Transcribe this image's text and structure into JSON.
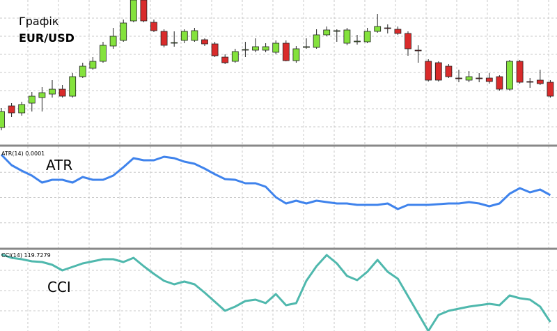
{
  "chart_data": [
    {
      "type": "candlestick",
      "title": "Графік",
      "subtitle": "EUR/USD",
      "up_color": "#84e23c",
      "down_color": "#d92b2b",
      "ylim": [
        2,
        210
      ],
      "open": [
        27,
        58,
        48,
        62,
        70,
        75,
        82,
        72,
        100,
        112,
        122,
        144,
        152,
        180,
        210,
        178,
        165,
        148,
        152,
        152,
        153,
        147,
        128,
        122,
        138,
        138,
        138,
        135,
        148,
        123,
        142,
        142,
        160,
        165,
        148,
        150,
        150,
        165,
        170,
        168,
        162,
        138,
        122,
        120,
        115,
        98,
        95,
        98,
        98,
        100,
        82,
        122,
        93,
        95,
        92
      ],
      "close": [
        50,
        48,
        60,
        72,
        77,
        82,
        72,
        100,
        115,
        122,
        145,
        158,
        177,
        210,
        180,
        166,
        145,
        149,
        165,
        166,
        147,
        130,
        120,
        136,
        139,
        143,
        143,
        148,
        123,
        140,
        143,
        160,
        167,
        166,
        167,
        151,
        165,
        172,
        169,
        162,
        140,
        137,
        95,
        95,
        100,
        97,
        100,
        97,
        93,
        82,
        122,
        92,
        92,
        90,
        72
      ],
      "high": [
        55,
        62,
        64,
        78,
        85,
        95,
        88,
        105,
        120,
        128,
        150,
        170,
        182,
        215,
        215,
        182,
        168,
        165,
        168,
        170,
        155,
        150,
        132,
        140,
        150,
        155,
        148,
        152,
        152,
        144,
        155,
        168,
        172,
        168,
        170,
        160,
        170,
        190,
        175,
        172,
        165,
        145,
        125,
        122,
        118,
        110,
        108,
        105,
        105,
        102,
        124,
        124,
        98,
        110,
        95
      ],
      "low": [
        23,
        42,
        44,
        50,
        50,
        70,
        70,
        70,
        98,
        110,
        120,
        140,
        150,
        178,
        178,
        164,
        142,
        143,
        148,
        150,
        144,
        128,
        118,
        120,
        128,
        135,
        135,
        132,
        122,
        120,
        140,
        140,
        158,
        150,
        145,
        146,
        148,
        163,
        162,
        160,
        130,
        120,
        93,
        93,
        98,
        92,
        92,
        92,
        90,
        80,
        80,
        90,
        84,
        88,
        70
      ]
    },
    {
      "type": "line",
      "title": "ATR(14) 0.0001",
      "annotation": "ATR",
      "color": "#3f83ec",
      "ylim": [
        2,
        148
      ],
      "values": [
        138,
        123,
        115,
        108,
        98,
        102,
        102,
        98,
        106,
        102,
        102,
        108,
        120,
        133,
        130,
        130,
        135,
        133,
        128,
        125,
        118,
        110,
        103,
        102,
        97,
        97,
        92,
        77,
        68,
        72,
        68,
        72,
        70,
        68,
        68,
        66,
        66,
        66,
        68,
        60,
        66,
        66,
        66,
        67,
        68,
        68,
        70,
        68,
        64,
        68,
        82,
        90,
        84,
        88,
        80
      ]
    },
    {
      "type": "line",
      "title": "CCI(14) 119.7279",
      "annotation": "CCI",
      "color": "#4fb8ad",
      "ylim": [
        0,
        120
      ],
      "values": [
        115,
        110,
        108,
        105,
        104,
        100,
        92,
        97,
        102,
        105,
        108,
        108,
        104,
        110,
        98,
        87,
        77,
        72,
        76,
        72,
        60,
        47,
        34,
        40,
        48,
        50,
        45,
        58,
        42,
        45,
        77,
        98,
        114,
        102,
        84,
        78,
        90,
        107,
        90,
        80,
        55,
        30,
        5,
        28,
        34,
        37,
        40,
        42,
        44,
        42,
        56,
        52,
        50,
        40,
        18
      ]
    }
  ]
}
